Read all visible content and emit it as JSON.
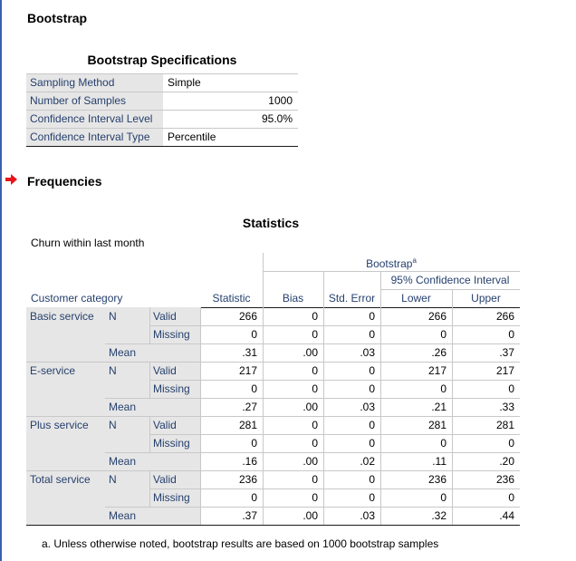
{
  "bootstrap_heading": "Bootstrap",
  "specs": {
    "title": "Bootstrap Specifications",
    "rows": [
      {
        "label": "Sampling Method",
        "value": "Simple",
        "align": "left"
      },
      {
        "label": "Number of Samples",
        "value": "1000",
        "align": "right"
      },
      {
        "label": "Confidence Interval Level",
        "value": "95.0%",
        "align": "right"
      },
      {
        "label": "Confidence Interval Type",
        "value": "Percentile",
        "align": "left"
      }
    ]
  },
  "frequencies_heading": "Frequencies",
  "arrow_color": "#e8151b",
  "stats": {
    "title": "Statistics",
    "subtitle": "Churn within last month",
    "row_header_title": "Customer category",
    "bootstrap_label": "Bootstrap",
    "bootstrap_sup": "a",
    "ci_label": "95% Confidence Interval",
    "columns": [
      "Statistic",
      "Bias",
      "Std. Error",
      "Lower",
      "Upper"
    ],
    "n_label": "N",
    "valid_label": "Valid",
    "missing_label": "Missing",
    "mean_label": "Mean",
    "groups": [
      {
        "name": "Basic service",
        "valid": [
          "266",
          "0",
          "0",
          "266",
          "266"
        ],
        "missing": [
          "0",
          "0",
          "0",
          "0",
          "0"
        ],
        "mean": [
          ".31",
          ".00",
          ".03",
          ".26",
          ".37"
        ]
      },
      {
        "name": "E-service",
        "valid": [
          "217",
          "0",
          "0",
          "217",
          "217"
        ],
        "missing": [
          "0",
          "0",
          "0",
          "0",
          "0"
        ],
        "mean": [
          ".27",
          ".00",
          ".03",
          ".21",
          ".33"
        ]
      },
      {
        "name": "Plus service",
        "valid": [
          "281",
          "0",
          "0",
          "281",
          "281"
        ],
        "missing": [
          "0",
          "0",
          "0",
          "0",
          "0"
        ],
        "mean": [
          ".16",
          ".00",
          ".02",
          ".11",
          ".20"
        ]
      },
      {
        "name": "Total service",
        "valid": [
          "236",
          "0",
          "0",
          "236",
          "236"
        ],
        "missing": [
          "0",
          "0",
          "0",
          "0",
          "0"
        ],
        "mean": [
          ".37",
          ".00",
          ".03",
          ".32",
          ".44"
        ]
      }
    ],
    "footnote": "a. Unless otherwise noted, bootstrap results are based on 1000 bootstrap samples"
  }
}
